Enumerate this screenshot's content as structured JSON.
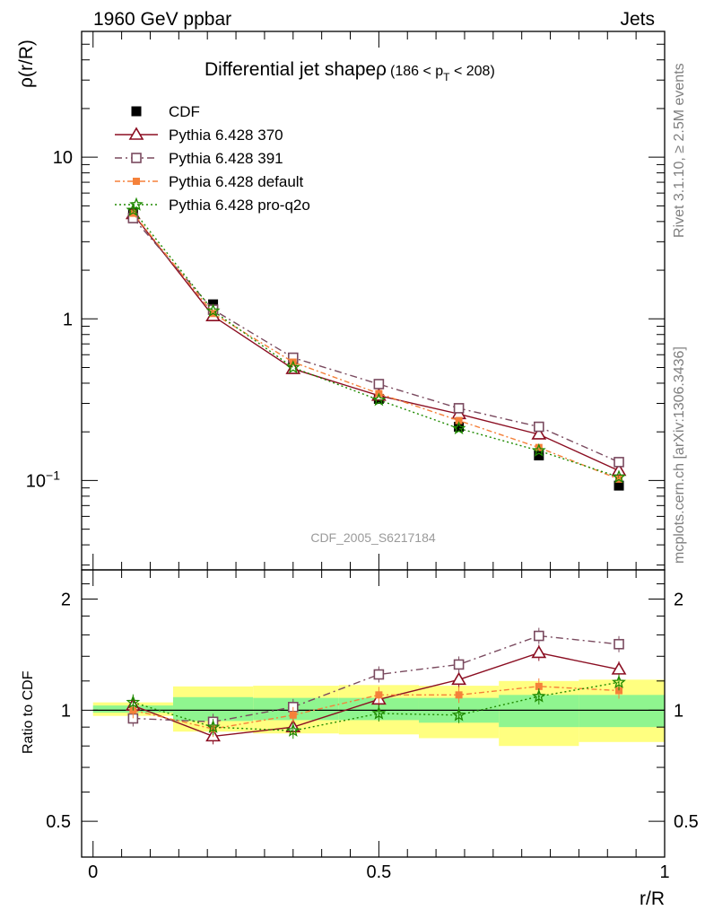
{
  "header": {
    "left": "1960 GeV ppbar",
    "right": "Jets"
  },
  "side_labels": {
    "rivet": "Rivet 3.1.10, ≥ 2.5M events",
    "mcplots": "mcplots.cern.ch [arXiv:1306.3436]"
  },
  "watermark": "CDF_2005_S6217184",
  "colors": {
    "cdf": "#000000",
    "p370": "#8b0e22",
    "p391": "#7a4a5f",
    "pdefault": "#f5813a",
    "pq2o": "#1f8a00",
    "band_outer": "#ffff80",
    "band_inner": "#8ff58f"
  },
  "chart_data": [
    {
      "type": "line",
      "panel": "main",
      "title": "Differential jet shape ρ (186 < p_T < 208)",
      "title_parts": {
        "main": "Differential jet shapeρ",
        "range": "(186 < p",
        "sub": "T",
        "range_end": " < 208)"
      },
      "xlabel": "",
      "ylabel": "ρ(r/R)",
      "yscale": "log",
      "xlim": [
        -0.02,
        1.0
      ],
      "ylim": [
        0.028,
        60
      ],
      "y_ticks": [
        {
          "v": 10,
          "label": "10"
        },
        {
          "v": 1,
          "label": "1"
        },
        {
          "v": 0.1,
          "label": "10",
          "sup": "−1"
        }
      ],
      "x": [
        0.07,
        0.21,
        0.35,
        0.5,
        0.64,
        0.78,
        0.92
      ],
      "series": [
        {
          "name": "CDF",
          "key": "cdf",
          "marker": "square-filled",
          "line": "none",
          "values": [
            4.5,
            1.23,
            0.56,
            0.32,
            0.215,
            0.143,
            0.093
          ]
        },
        {
          "name": "Pythia 6.428 370",
          "key": "p370",
          "marker": "triangle-open",
          "line": "solid",
          "values": [
            4.45,
            1.04,
            0.49,
            0.335,
            0.258,
            0.193,
            0.115
          ]
        },
        {
          "name": "Pythia 6.428 391",
          "key": "p391",
          "marker": "square-open",
          "line": "dashdot",
          "values": [
            4.2,
            1.14,
            0.575,
            0.395,
            0.28,
            0.215,
            0.13
          ]
        },
        {
          "name": "Pythia 6.428 default",
          "key": "pdefault",
          "marker": "square-small",
          "line": "dashdot2",
          "values": [
            4.5,
            1.08,
            0.54,
            0.345,
            0.235,
            0.16,
            0.102
          ]
        },
        {
          "name": "Pythia 6.428 pro-q2o",
          "key": "pq2o",
          "marker": "star",
          "line": "dotted",
          "values": [
            4.7,
            1.12,
            0.5,
            0.315,
            0.21,
            0.153,
            0.105
          ]
        }
      ],
      "legend_position": "top-left"
    },
    {
      "type": "line",
      "panel": "ratio",
      "xlabel": "r/R",
      "ylabel": "Ratio to CDF",
      "yscale": "log",
      "xlim": [
        -0.02,
        1.0
      ],
      "ylim": [
        0.4,
        2.4
      ],
      "x_ticks": [
        {
          "v": 0,
          "label": "0"
        },
        {
          "v": 0.5,
          "label": "0.5"
        },
        {
          "v": 1,
          "label": "1"
        }
      ],
      "y_ticks": [
        {
          "v": 2,
          "label": "2"
        },
        {
          "v": 1,
          "label": "1"
        },
        {
          "v": 0.5,
          "label": "0.5"
        }
      ],
      "x": [
        0.07,
        0.21,
        0.35,
        0.5,
        0.64,
        0.78,
        0.92
      ],
      "series": [
        {
          "name": "Pythia 6.428 370",
          "key": "p370",
          "marker": "triangle-open",
          "line": "solid",
          "values": [
            1.03,
            0.85,
            0.9,
            1.07,
            1.21,
            1.43,
            1.29
          ]
        },
        {
          "name": "Pythia 6.428 391",
          "key": "p391",
          "marker": "square-open",
          "line": "dashdot",
          "values": [
            0.95,
            0.93,
            1.02,
            1.25,
            1.33,
            1.59,
            1.51
          ]
        },
        {
          "name": "Pythia 6.428 default",
          "key": "pdefault",
          "marker": "square-small",
          "line": "dashdot2",
          "values": [
            1.0,
            0.89,
            0.97,
            1.1,
            1.1,
            1.16,
            1.13
          ]
        },
        {
          "name": "Pythia 6.428 pro-q2o",
          "key": "pq2o",
          "marker": "star",
          "line": "dotted",
          "values": [
            1.05,
            0.9,
            0.88,
            0.98,
            0.97,
            1.09,
            1.19
          ]
        }
      ],
      "bands": [
        {
          "x0": 0.0,
          "x1": 0.14,
          "inner": [
            0.985,
            1.03
          ],
          "outer": [
            0.965,
            1.05
          ]
        },
        {
          "x0": 0.14,
          "x1": 0.28,
          "inner": [
            0.935,
            1.085
          ],
          "outer": [
            0.875,
            1.16
          ]
        },
        {
          "x0": 0.28,
          "x1": 0.43,
          "inner": [
            0.94,
            1.08
          ],
          "outer": [
            0.865,
            1.165
          ]
        },
        {
          "x0": 0.43,
          "x1": 0.57,
          "inner": [
            0.94,
            1.08
          ],
          "outer": [
            0.86,
            1.17
          ]
        },
        {
          "x0": 0.57,
          "x1": 0.71,
          "inner": [
            0.925,
            1.08
          ],
          "outer": [
            0.84,
            1.165
          ]
        },
        {
          "x0": 0.71,
          "x1": 0.85,
          "inner": [
            0.9,
            1.1
          ],
          "outer": [
            0.8,
            1.2
          ]
        },
        {
          "x0": 0.85,
          "x1": 1.0,
          "inner": [
            0.9,
            1.1
          ],
          "outer": [
            0.82,
            1.21
          ]
        }
      ]
    }
  ]
}
